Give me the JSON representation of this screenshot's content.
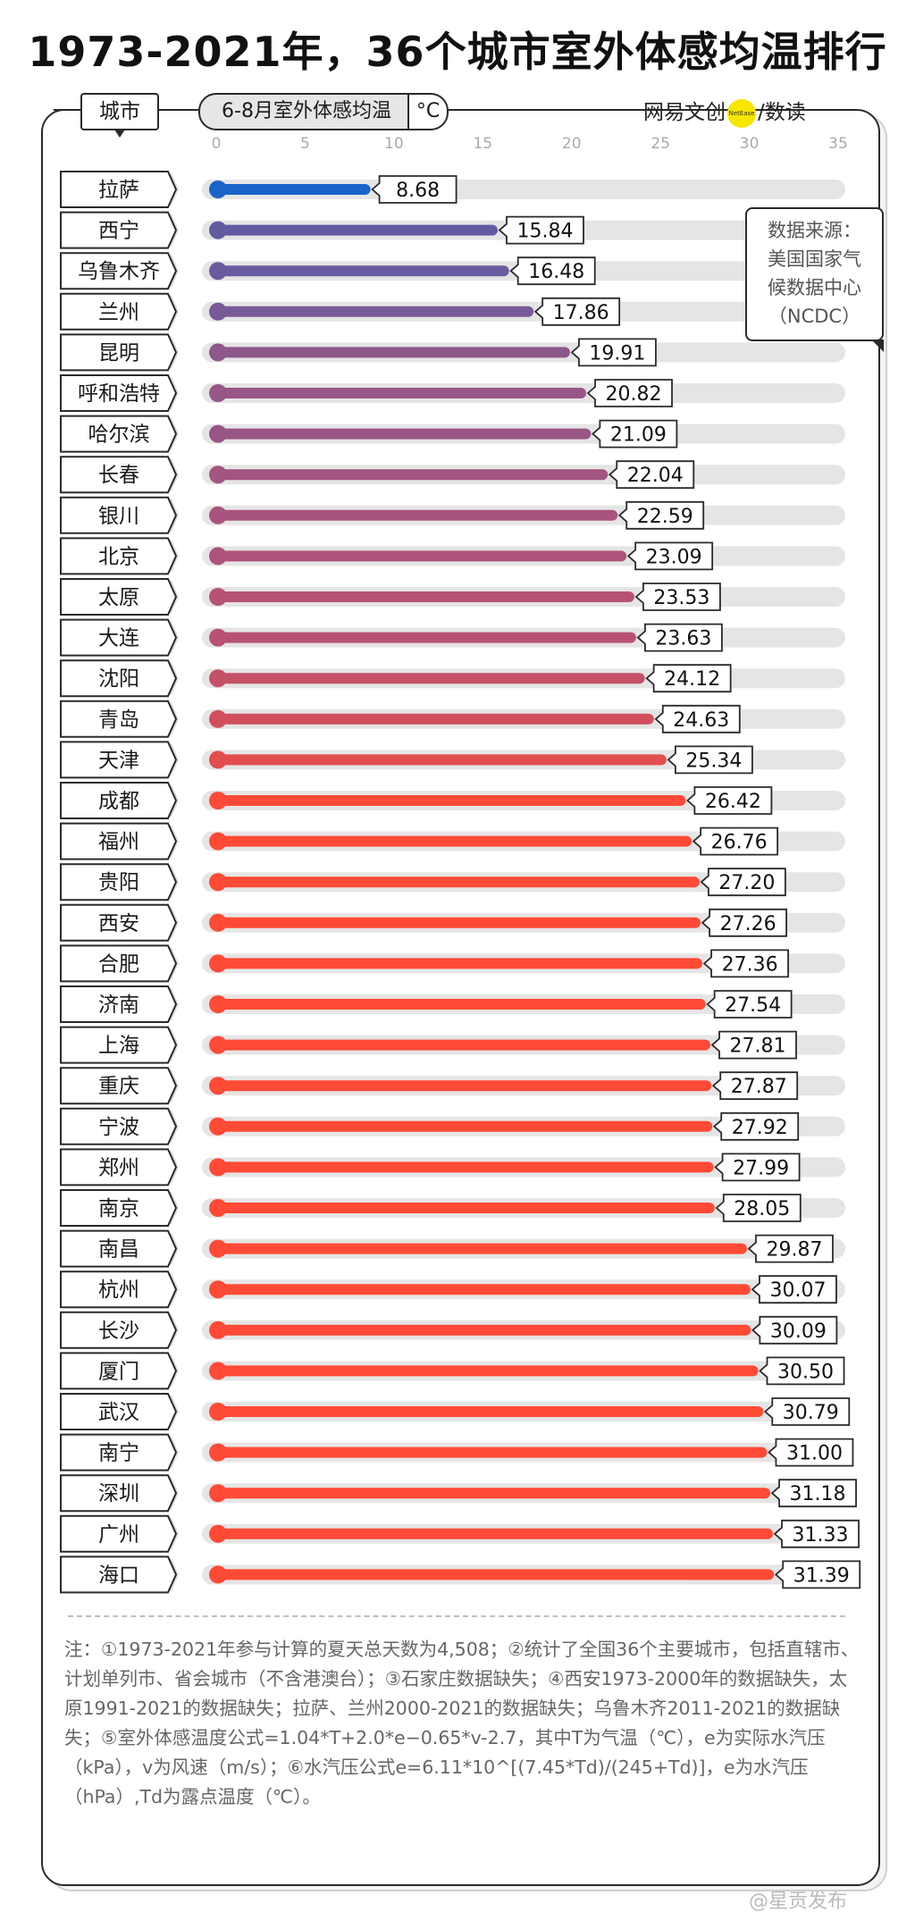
{
  "title": "1973-2021年，36个城市室外体感均温排行",
  "header": {
    "city_label": "城市",
    "metric_label": "6-8月室外体感均温",
    "unit": "°C"
  },
  "logo": {
    "brand": "网易文创",
    "badge": "NetEase",
    "separator": "/",
    "product": "数读"
  },
  "source_box": {
    "line1": "数据来源：",
    "line2": "美国国家气",
    "line3": "候数据中心",
    "line4": "（NCDC）"
  },
  "colors": {
    "cold": "#1a63c9",
    "mid": "#b0537a",
    "warm": "#ff4a35",
    "track": "#e5e5e5"
  },
  "chart_data": {
    "type": "bar",
    "orientation": "horizontal",
    "title": "1973-2021年，36个城市室外体感均温排行",
    "xlabel": "6-8月室外体感均温 °C",
    "xlim": [
      0,
      35
    ],
    "xticks": [
      0,
      5,
      10,
      15,
      20,
      25,
      30,
      35
    ],
    "categories": [
      "拉萨",
      "西宁",
      "乌鲁木齐",
      "兰州",
      "昆明",
      "呼和浩特",
      "哈尔滨",
      "长春",
      "银川",
      "北京",
      "太原",
      "大连",
      "沈阳",
      "青岛",
      "天津",
      "成都",
      "福州",
      "贵阳",
      "西安",
      "合肥",
      "济南",
      "上海",
      "重庆",
      "宁波",
      "郑州",
      "南京",
      "南昌",
      "杭州",
      "长沙",
      "厦门",
      "武汉",
      "南宁",
      "深圳",
      "广州",
      "海口"
    ],
    "values": [
      8.68,
      15.84,
      16.48,
      17.86,
      19.91,
      20.82,
      21.09,
      22.04,
      22.59,
      23.09,
      23.53,
      23.63,
      24.12,
      24.63,
      25.34,
      26.42,
      26.76,
      27.2,
      27.26,
      27.36,
      27.54,
      27.81,
      27.87,
      27.92,
      27.99,
      28.05,
      29.87,
      30.07,
      30.09,
      30.5,
      30.79,
      31.0,
      31.18,
      31.33,
      31.39
    ],
    "labels": [
      "8.68",
      "15.84",
      "16.48",
      "17.86",
      "19.91",
      "20.82",
      "21.09",
      "22.04",
      "22.59",
      "23.09",
      "23.53",
      "23.63",
      "24.12",
      "24.63",
      "25.34",
      "26.42",
      "26.76",
      "27.20",
      "27.26",
      "27.36",
      "27.54",
      "27.81",
      "27.87",
      "27.92",
      "27.99",
      "28.05",
      "29.87",
      "30.07",
      "30.09",
      "30.50",
      "30.79",
      "31.00",
      "31.18",
      "31.33",
      "31.39"
    ],
    "grid": false,
    "legend": "none"
  },
  "notes": "注：①1973-2021年参与计算的夏天总天数为4,508；②统计了全国36个主要城市，包括直辖市、计划单列市、省会城市（不含港澳台）；③石家庄数据缺失；④西安1973-2000年的数据缺失，太原1991-2021的数据缺失；拉萨、兰州2000-2021的数据缺失；乌鲁木齐2011-2021的数据缺失；⑤室外体感温度公式=1.04*T+2.0*e−0.65*v-2.7，其中T为气温（℃），e为实际水汽压（kPa），v为风速（m/s）；⑥水汽压公式e=6.11*10^[(7.45*Td)/(245+Td)]，e为水汽压（hPa）,Td为露点温度（℃）。",
  "credit": "@星贡发布"
}
